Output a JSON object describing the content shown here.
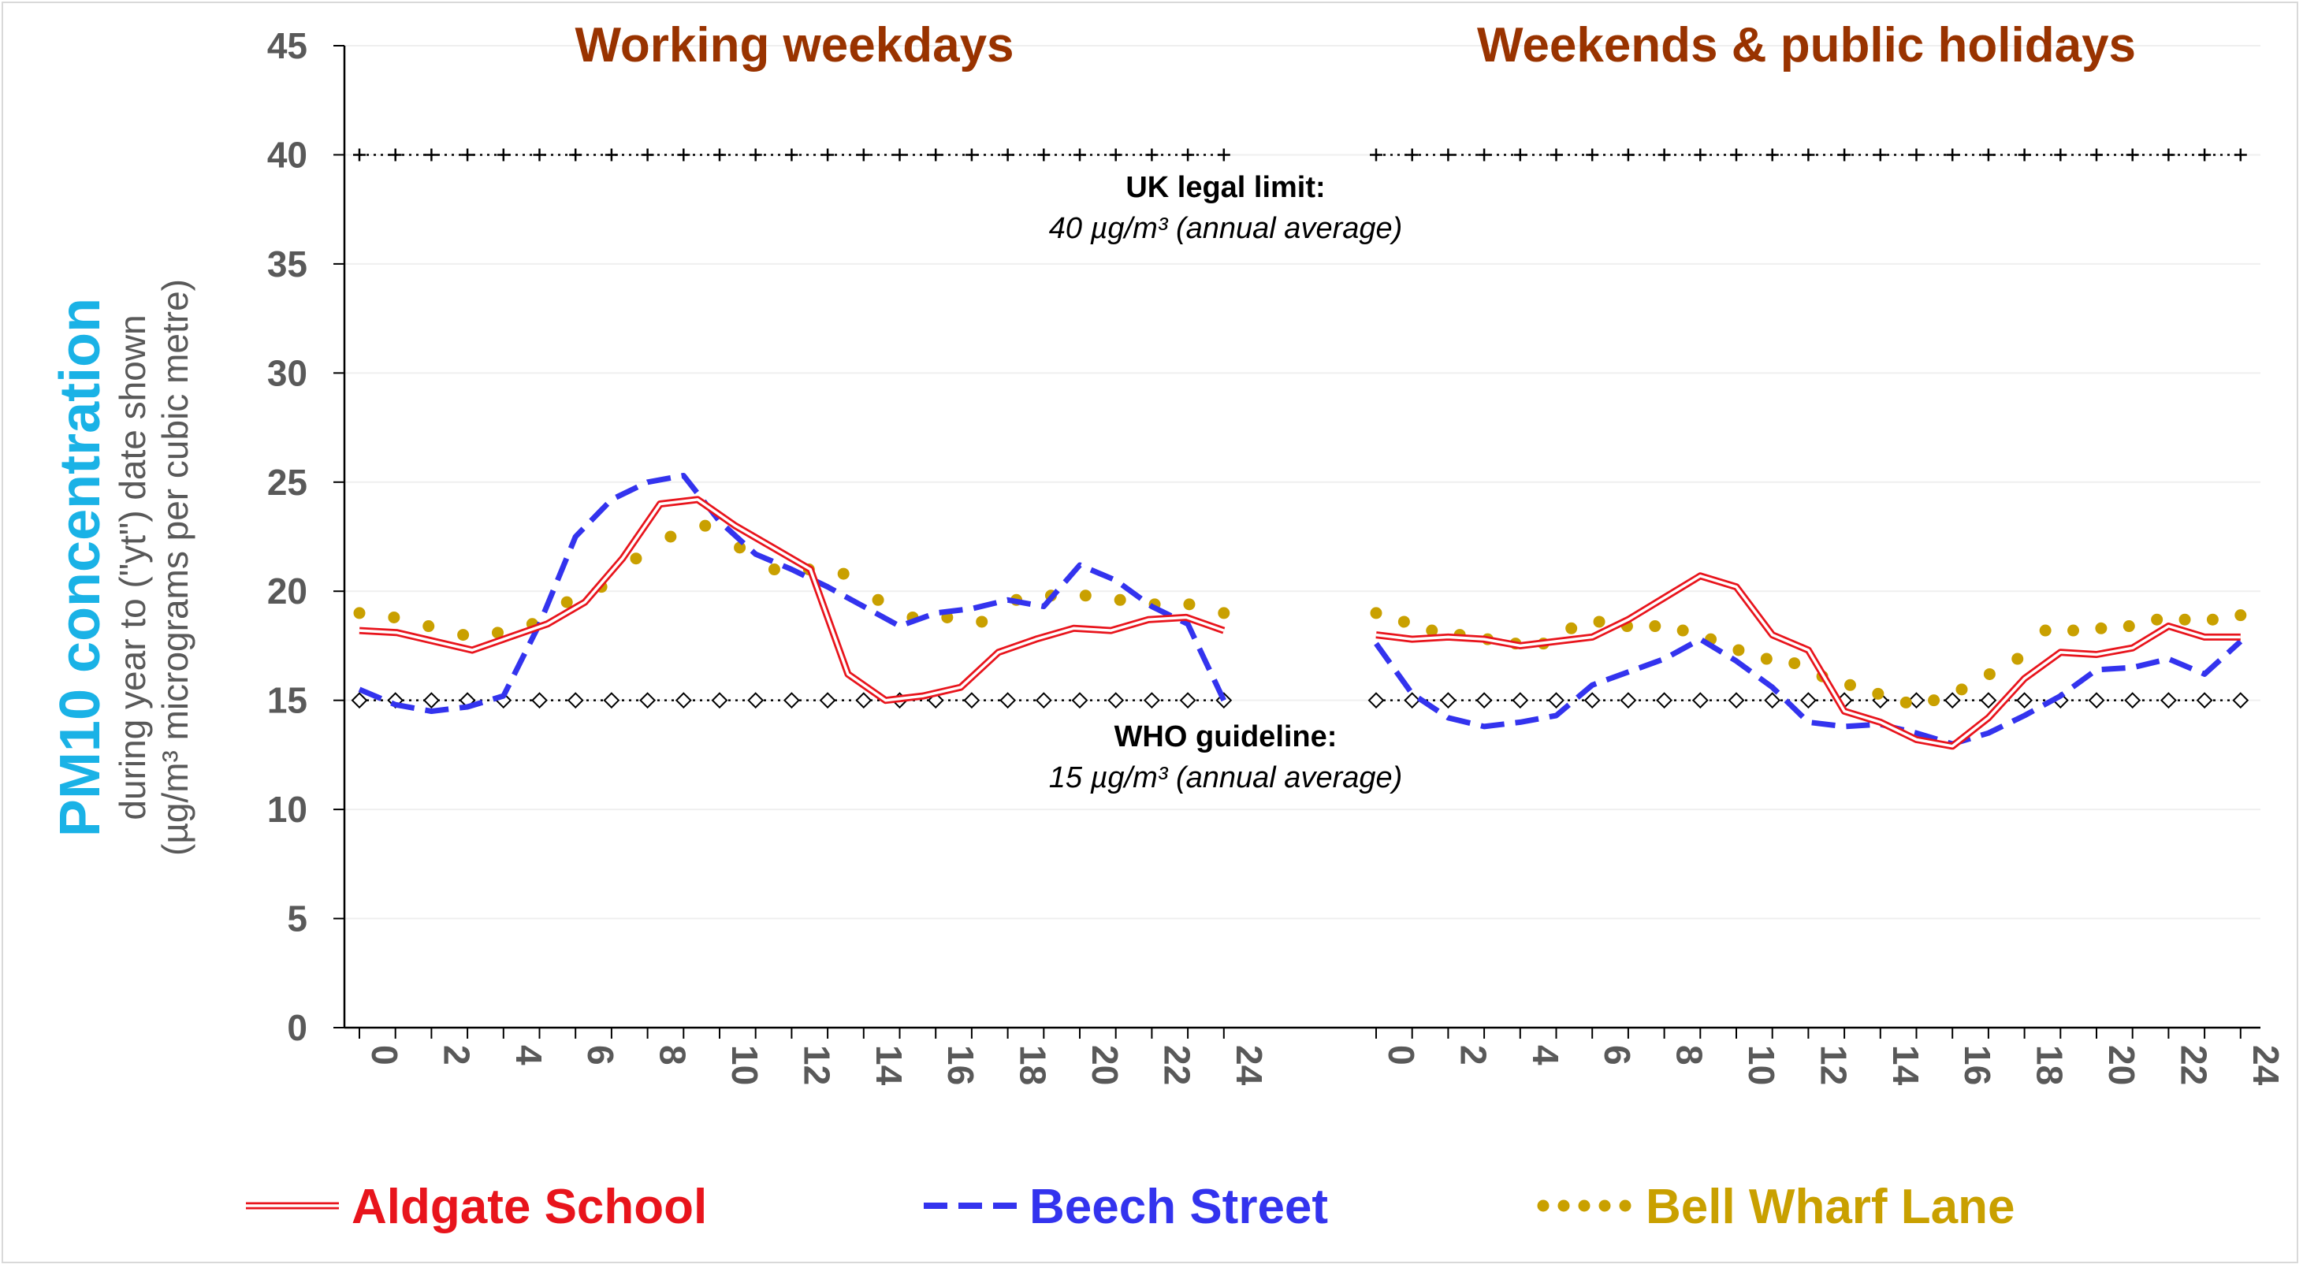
{
  "chart_data": {
    "type": "line",
    "ylim": [
      0,
      45
    ],
    "yticks": [
      "0",
      "5",
      "10",
      "15",
      "20",
      "25",
      "30",
      "35",
      "40",
      "45"
    ],
    "xticks": [
      "0",
      "2",
      "4",
      "6",
      "8",
      "10",
      "12",
      "14",
      "16",
      "18",
      "20",
      "22",
      "24"
    ],
    "ylabel": {
      "line1": "PM10 concentration",
      "line2": "during year to (\"yt\") date shown",
      "line3": "(µg/m³ micrograms per cubic metre)"
    },
    "annotations": {
      "uk_title": "UK legal limit:",
      "uk_sub": "40 µg/m³ (annual average)",
      "who_title": "WHO guideline:",
      "who_sub": "15 µg/m³ (annual average)"
    },
    "reference_lines": [
      {
        "value": 40,
        "marker": "plus"
      },
      {
        "value": 15,
        "marker": "diamond"
      }
    ],
    "colors": {
      "aldgate": "#e8141c",
      "beech": "#3333ee",
      "bell": "#c9a000",
      "title": "#993300",
      "ylabel_accent": "#1ab2e6"
    },
    "legend": [
      {
        "key": "aldgate",
        "label": "Aldgate School"
      },
      {
        "key": "beech",
        "label": "Beech Street"
      },
      {
        "key": "bell",
        "label": "Bell Wharf Lane"
      }
    ],
    "panels": [
      {
        "title": "Working weekdays",
        "series": {
          "aldgate": [
            18.2,
            18.1,
            17.7,
            17.3,
            17.9,
            18.5,
            19.5,
            21.5,
            24.0,
            24.2,
            23.0,
            22.0,
            21.0,
            16.2,
            15.0,
            15.2,
            15.6,
            17.2,
            17.8,
            18.3,
            18.2,
            18.7,
            18.8,
            18.2
          ],
          "beech": [
            15.5,
            14.8,
            14.5,
            14.7,
            15.2,
            18.5,
            22.5,
            24.2,
            25.0,
            25.3,
            23.2,
            21.7,
            21.0,
            20.2,
            19.3,
            18.4,
            19.0,
            19.2,
            19.6,
            19.3,
            21.2,
            20.5,
            19.3,
            18.5,
            15.0
          ],
          "bell": [
            19.0,
            18.8,
            18.4,
            18.0,
            18.1,
            18.5,
            19.5,
            20.2,
            21.5,
            22.5,
            23.0,
            22.0,
            21.0,
            21.0,
            20.8,
            19.6,
            18.8,
            18.8,
            18.6,
            19.6,
            19.8,
            19.8,
            19.6,
            19.4,
            19.4,
            19.0
          ]
        }
      },
      {
        "title": "Weekends & public holidays",
        "series": {
          "aldgate": [
            18.0,
            17.8,
            17.9,
            17.8,
            17.5,
            17.7,
            17.9,
            18.7,
            19.7,
            20.7,
            20.2,
            18.0,
            17.3,
            14.5,
            14.0,
            13.2,
            12.9,
            14.2,
            16.0,
            17.2,
            17.1,
            17.4,
            18.4,
            17.9,
            17.9
          ],
          "beech": [
            17.6,
            15.3,
            14.2,
            13.8,
            14.0,
            14.3,
            15.7,
            16.3,
            16.9,
            17.8,
            16.8,
            15.6,
            14.0,
            13.8,
            13.9,
            13.5,
            13.0,
            13.5,
            14.3,
            15.2,
            16.4,
            16.5,
            16.9,
            16.2,
            17.7
          ],
          "bell": [
            19.0,
            18.6,
            18.2,
            18.0,
            17.8,
            17.6,
            17.6,
            18.3,
            18.6,
            18.4,
            18.4,
            18.2,
            17.8,
            17.3,
            16.9,
            16.7,
            16.1,
            15.7,
            15.3,
            14.9,
            15.0,
            15.5,
            16.2,
            16.9,
            18.2,
            18.2,
            18.3,
            18.4,
            18.7,
            18.7,
            18.7,
            18.9
          ]
        }
      }
    ]
  }
}
